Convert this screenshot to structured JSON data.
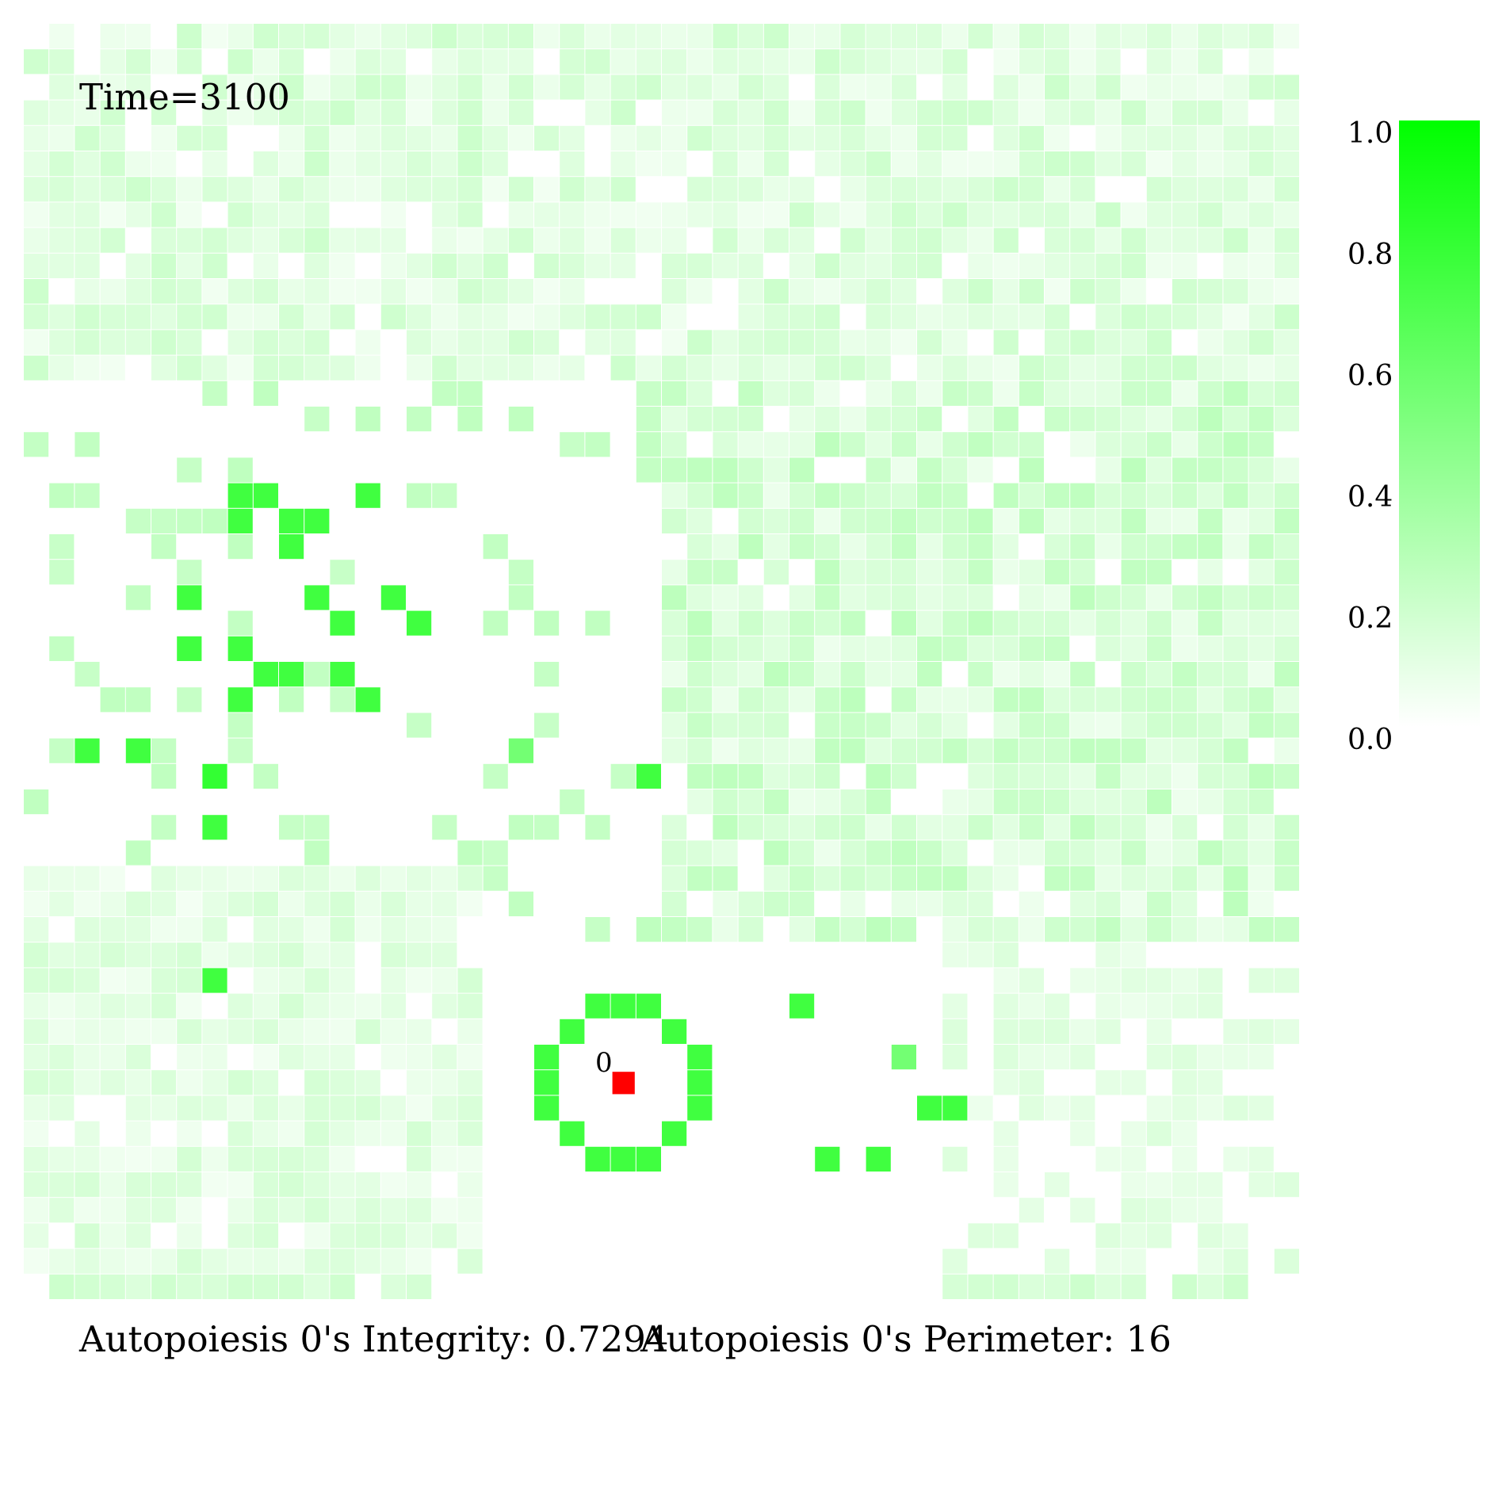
{
  "time_label": "Time=3100",
  "integrity_label": "Autopoiesis 0's Integrity: 0.7294",
  "perimeter_label": "Autopoiesis 0's Perimeter: 16",
  "agent_label": "0",
  "colors": {
    "low": "#ffffff",
    "high": "#00ff00",
    "agent": "#ff0000"
  },
  "chart_data": {
    "type": "heatmap",
    "title": "",
    "grid_size": [
      50,
      50
    ],
    "value_range": [
      0.0,
      1.0
    ],
    "colorbar": {
      "ticks": [
        0.0,
        0.2,
        0.4,
        0.6,
        0.8,
        1.0
      ],
      "tick_labels": [
        "0.0",
        "0.2",
        "0.4",
        "0.6",
        "0.8",
        "1.0"
      ],
      "placement": "right"
    },
    "agent_cell": {
      "row": 41,
      "col": 23,
      "label": "0"
    },
    "strong_cells": [
      {
        "row": 18,
        "col": 8,
        "value": 0.75
      },
      {
        "row": 18,
        "col": 9,
        "value": 0.75
      },
      {
        "row": 18,
        "col": 13,
        "value": 0.75
      },
      {
        "row": 19,
        "col": 8,
        "value": 0.75
      },
      {
        "row": 19,
        "col": 10,
        "value": 0.75
      },
      {
        "row": 19,
        "col": 11,
        "value": 0.75
      },
      {
        "row": 20,
        "col": 10,
        "value": 0.75
      },
      {
        "row": 22,
        "col": 6,
        "value": 0.75
      },
      {
        "row": 22,
        "col": 11,
        "value": 0.75
      },
      {
        "row": 22,
        "col": 14,
        "value": 0.75
      },
      {
        "row": 23,
        "col": 12,
        "value": 0.75
      },
      {
        "row": 23,
        "col": 15,
        "value": 0.75
      },
      {
        "row": 24,
        "col": 6,
        "value": 0.75
      },
      {
        "row": 24,
        "col": 8,
        "value": 0.75
      },
      {
        "row": 25,
        "col": 9,
        "value": 0.75
      },
      {
        "row": 25,
        "col": 10,
        "value": 0.75
      },
      {
        "row": 25,
        "col": 12,
        "value": 0.75
      },
      {
        "row": 26,
        "col": 8,
        "value": 0.75
      },
      {
        "row": 26,
        "col": 13,
        "value": 0.75
      },
      {
        "row": 28,
        "col": 2,
        "value": 0.75
      },
      {
        "row": 28,
        "col": 4,
        "value": 0.75
      },
      {
        "row": 28,
        "col": 19,
        "value": 0.55
      },
      {
        "row": 29,
        "col": 7,
        "value": 0.8
      },
      {
        "row": 29,
        "col": 24,
        "value": 0.75
      },
      {
        "row": 31,
        "col": 7,
        "value": 0.75
      },
      {
        "row": 37,
        "col": 7,
        "value": 0.75
      },
      {
        "row": 38,
        "col": 22,
        "value": 0.75
      },
      {
        "row": 38,
        "col": 23,
        "value": 0.75
      },
      {
        "row": 38,
        "col": 24,
        "value": 0.75
      },
      {
        "row": 38,
        "col": 30,
        "value": 0.75
      },
      {
        "row": 39,
        "col": 21,
        "value": 0.75
      },
      {
        "row": 39,
        "col": 25,
        "value": 0.75
      },
      {
        "row": 40,
        "col": 20,
        "value": 0.75
      },
      {
        "row": 40,
        "col": 26,
        "value": 0.75
      },
      {
        "row": 40,
        "col": 34,
        "value": 0.55
      },
      {
        "row": 41,
        "col": 20,
        "value": 0.75
      },
      {
        "row": 41,
        "col": 26,
        "value": 0.75
      },
      {
        "row": 42,
        "col": 20,
        "value": 0.75
      },
      {
        "row": 42,
        "col": 26,
        "value": 0.75
      },
      {
        "row": 42,
        "col": 35,
        "value": 0.75
      },
      {
        "row": 42,
        "col": 36,
        "value": 0.75
      },
      {
        "row": 43,
        "col": 21,
        "value": 0.75
      },
      {
        "row": 43,
        "col": 25,
        "value": 0.75
      },
      {
        "row": 44,
        "col": 22,
        "value": 0.75
      },
      {
        "row": 44,
        "col": 23,
        "value": 0.75
      },
      {
        "row": 44,
        "col": 24,
        "value": 0.75
      },
      {
        "row": 44,
        "col": 31,
        "value": 0.75
      },
      {
        "row": 44,
        "col": 33,
        "value": 0.75
      }
    ]
  }
}
